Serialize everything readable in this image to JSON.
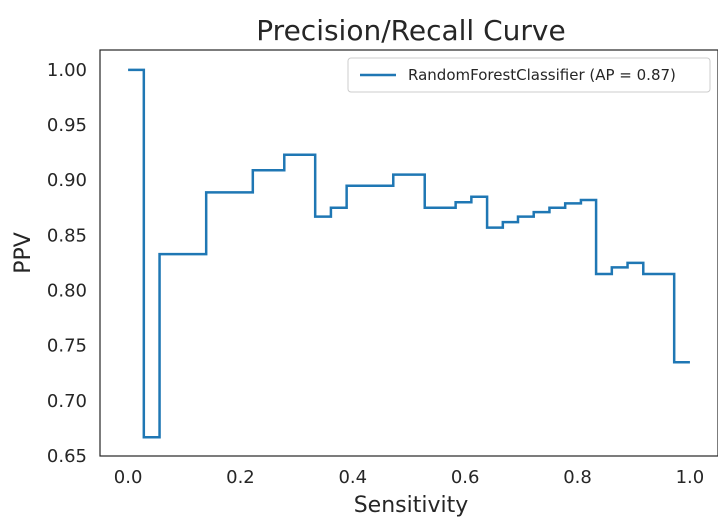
{
  "chart_data": {
    "type": "line",
    "title": "Precision/Recall Curve",
    "xlabel": "Sensitivity",
    "ylabel": "PPV",
    "xlim": [
      -0.05,
      1.05
    ],
    "ylim": [
      0.65,
      1.018
    ],
    "xticks": [
      0.0,
      0.2,
      0.4,
      0.6,
      0.8,
      1.0
    ],
    "xtick_labels": [
      "0.0",
      "0.2",
      "0.4",
      "0.6",
      "0.8",
      "1.0"
    ],
    "yticks": [
      0.65,
      0.7,
      0.75,
      0.8,
      0.85,
      0.9,
      0.95,
      1.0
    ],
    "ytick_labels": [
      "0.65",
      "0.70",
      "0.75",
      "0.80",
      "0.85",
      "0.90",
      "0.95",
      "1.00"
    ],
    "grid": false,
    "legend_position": "top-right",
    "series": [
      {
        "name": "RandomForestClassifier (AP = 0.87)",
        "color": "#1f77b4",
        "step": "post",
        "x": [
          0.0,
          0.028,
          0.056,
          0.139,
          0.222,
          0.278,
          0.333,
          0.361,
          0.389,
          0.472,
          0.528,
          0.583,
          0.611,
          0.639,
          0.667,
          0.694,
          0.722,
          0.75,
          0.778,
          0.806,
          0.833,
          0.861,
          0.889,
          0.917,
          0.972,
          1.0
        ],
        "y": [
          1.0,
          0.667,
          0.833,
          0.889,
          0.909,
          0.923,
          0.867,
          0.875,
          0.895,
          0.905,
          0.875,
          0.88,
          0.885,
          0.857,
          0.862,
          0.867,
          0.871,
          0.875,
          0.879,
          0.882,
          0.815,
          0.821,
          0.825,
          0.815,
          0.735,
          0.735
        ]
      }
    ]
  }
}
